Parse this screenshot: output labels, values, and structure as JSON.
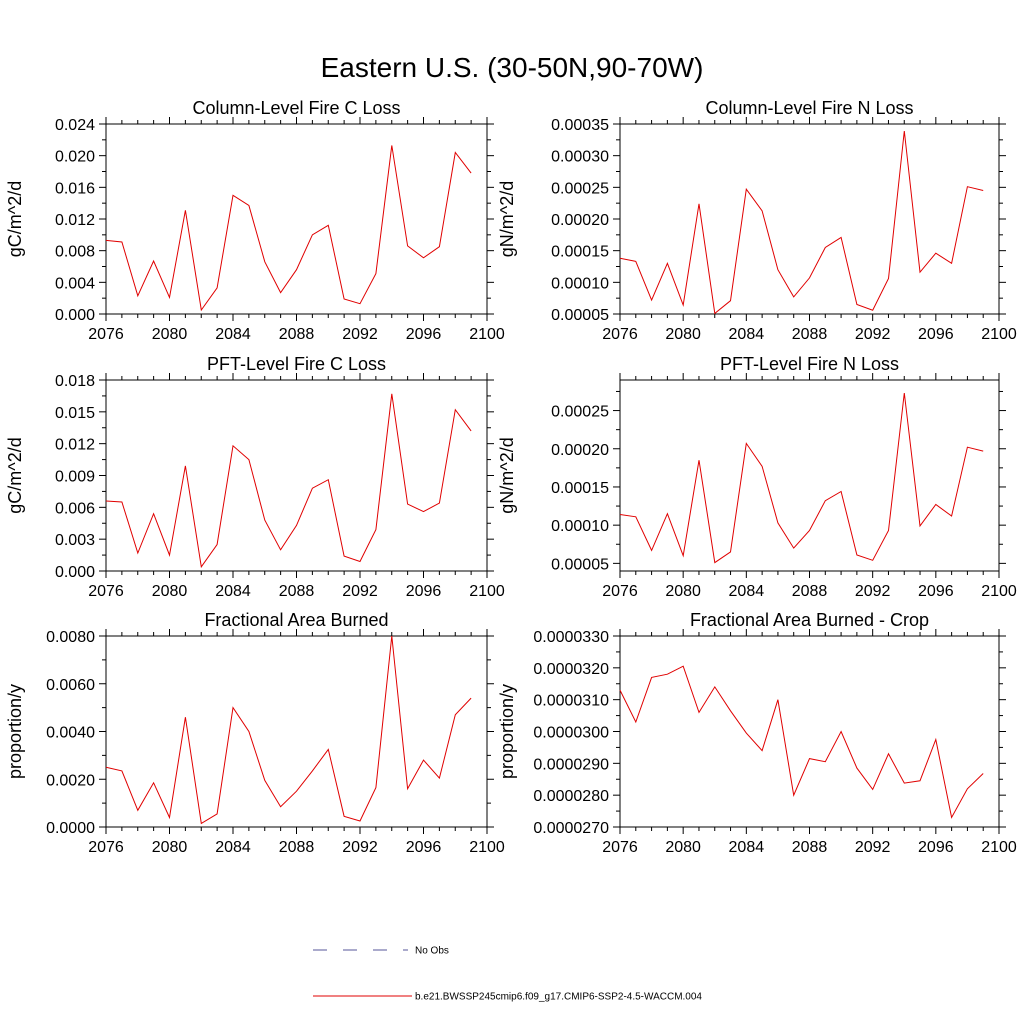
{
  "figure": {
    "title": "Eastern U.S. (30-50N,90-70W)"
  },
  "legend": {
    "items": [
      {
        "label": "No Obs",
        "color": "#555599",
        "style": "dashed"
      },
      {
        "label": "b.e21.BWSSP245cmip6.f09_g17.CMIP6-SSP2-4.5-WACCM.004",
        "color": "#e00000",
        "style": "solid"
      }
    ]
  },
  "chart_data": [
    {
      "type": "line",
      "title": "Column-Level Fire C Loss",
      "ylabel": "gC/m^2/d",
      "xlabel": "",
      "xlim": [
        2076,
        2100
      ],
      "ylim": [
        0.0,
        0.024
      ],
      "xticks": [
        "2076",
        "2080",
        "2084",
        "2088",
        "2092",
        "2096",
        "2100"
      ],
      "yticks": [
        "0.000",
        "0.004",
        "0.008",
        "0.012",
        "0.016",
        "0.020",
        "0.024"
      ],
      "series_color": "#e00000",
      "x": [
        2076,
        2077,
        2078,
        2079,
        2080,
        2081,
        2082,
        2083,
        2084,
        2085,
        2086,
        2087,
        2088,
        2089,
        2090,
        2091,
        2092,
        2093,
        2094,
        2095,
        2096,
        2097,
        2098,
        2099
      ],
      "y": [
        0.0093,
        0.0091,
        0.0023,
        0.0067,
        0.0021,
        0.0131,
        0.0005,
        0.0033,
        0.015,
        0.0137,
        0.0066,
        0.0027,
        0.0056,
        0.01,
        0.0112,
        0.0019,
        0.0013,
        0.0051,
        0.0213,
        0.0086,
        0.0071,
        0.0085,
        0.0204,
        0.0178
      ]
    },
    {
      "type": "line",
      "title": "Column-Level Fire N Loss",
      "ylabel": "gN/m^2/d",
      "xlabel": "",
      "xlim": [
        2076,
        2100
      ],
      "ylim": [
        5e-05,
        0.00035
      ],
      "xticks": [
        "2076",
        "2080",
        "2084",
        "2088",
        "2092",
        "2096",
        "2100"
      ],
      "yticks": [
        "0.00005",
        "0.00010",
        "0.00015",
        "0.00020",
        "0.00025",
        "0.00030",
        "0.00035"
      ],
      "series_color": "#e00000",
      "x": [
        2076,
        2077,
        2078,
        2079,
        2080,
        2081,
        2082,
        2083,
        2084,
        2085,
        2086,
        2087,
        2088,
        2089,
        2090,
        2091,
        2092,
        2093,
        2094,
        2095,
        2096,
        2097,
        2098,
        2099
      ],
      "y": [
        0.000138,
        0.000133,
        7.2e-05,
        0.00013,
        6.4e-05,
        0.000224,
        5.1e-05,
        7.1e-05,
        0.000247,
        0.000213,
        0.00012,
        7.7e-05,
        0.000107,
        0.000155,
        0.000171,
        6.5e-05,
        5.6e-05,
        0.000106,
        0.000339,
        0.000116,
        0.000146,
        0.00013,
        0.000251,
        0.000245
      ]
    },
    {
      "type": "line",
      "title": "PFT-Level Fire C Loss",
      "ylabel": "gC/m^2/d",
      "xlabel": "",
      "xlim": [
        2076,
        2100
      ],
      "ylim": [
        0.0,
        0.018
      ],
      "xticks": [
        "2076",
        "2080",
        "2084",
        "2088",
        "2092",
        "2096",
        "2100"
      ],
      "yticks": [
        "0.000",
        "0.003",
        "0.006",
        "0.009",
        "0.012",
        "0.015",
        "0.018"
      ],
      "series_color": "#e00000",
      "x": [
        2076,
        2077,
        2078,
        2079,
        2080,
        2081,
        2082,
        2083,
        2084,
        2085,
        2086,
        2087,
        2088,
        2089,
        2090,
        2091,
        2092,
        2093,
        2094,
        2095,
        2096,
        2097,
        2098,
        2099
      ],
      "y": [
        0.0066,
        0.0065,
        0.0017,
        0.0054,
        0.0015,
        0.0099,
        0.0004,
        0.0025,
        0.0118,
        0.0105,
        0.0048,
        0.002,
        0.0043,
        0.0078,
        0.0086,
        0.0014,
        0.0009,
        0.0039,
        0.0167,
        0.0063,
        0.0056,
        0.0064,
        0.0152,
        0.0132
      ]
    },
    {
      "type": "line",
      "title": "PFT-Level Fire N Loss",
      "ylabel": "gN/m^2/d",
      "xlabel": "",
      "xlim": [
        2076,
        2100
      ],
      "ylim": [
        4e-05,
        0.00029
      ],
      "xticks": [
        "2076",
        "2080",
        "2084",
        "2088",
        "2092",
        "2096",
        "2100"
      ],
      "yticks": [
        "0.00005",
        "0.00010",
        "0.00015",
        "0.00020",
        "0.00025"
      ],
      "ytick_values": [
        5e-05,
        0.0001,
        0.00015,
        0.0002,
        0.00025
      ],
      "series_color": "#e00000",
      "x": [
        2076,
        2077,
        2078,
        2079,
        2080,
        2081,
        2082,
        2083,
        2084,
        2085,
        2086,
        2087,
        2088,
        2089,
        2090,
        2091,
        2092,
        2093,
        2094,
        2095,
        2096,
        2097,
        2098,
        2099
      ],
      "y": [
        0.000114,
        0.000111,
        6.7e-05,
        0.000115,
        6e-05,
        0.000185,
        5.1e-05,
        6.5e-05,
        0.000207,
        0.000177,
        0.000103,
        7e-05,
        9.3e-05,
        0.000132,
        0.000144,
        6.1e-05,
        5.4e-05,
        9.3e-05,
        0.000273,
        9.9e-05,
        0.000127,
        0.000112,
        0.000202,
        0.000197
      ]
    },
    {
      "type": "line",
      "title": "Fractional Area Burned",
      "ylabel": "proportion/y",
      "xlabel": "",
      "xlim": [
        2076,
        2100
      ],
      "ylim": [
        0.0,
        0.008
      ],
      "xticks": [
        "2076",
        "2080",
        "2084",
        "2088",
        "2092",
        "2096",
        "2100"
      ],
      "yticks": [
        "0.0000",
        "0.0020",
        "0.0040",
        "0.0060",
        "0.0080"
      ],
      "series_color": "#e00000",
      "x": [
        2076,
        2077,
        2078,
        2079,
        2080,
        2081,
        2082,
        2083,
        2084,
        2085,
        2086,
        2087,
        2088,
        2089,
        2090,
        2091,
        2092,
        2093,
        2094,
        2095,
        2096,
        2097,
        2098,
        2099
      ],
      "y": [
        0.0025,
        0.00235,
        0.0007,
        0.00185,
        0.0004,
        0.0046,
        0.00015,
        0.00055,
        0.005,
        0.004,
        0.00195,
        0.00085,
        0.0015,
        0.00235,
        0.00325,
        0.00045,
        0.00025,
        0.00165,
        0.008,
        0.0016,
        0.0028,
        0.00205,
        0.0047,
        0.0054
      ]
    },
    {
      "type": "line",
      "title": "Fractional Area Burned - Crop",
      "ylabel": "proportion/y",
      "xlabel": "",
      "xlim": [
        2076,
        2100
      ],
      "ylim": [
        2.7e-05,
        3.3e-05
      ],
      "xticks": [
        "2076",
        "2080",
        "2084",
        "2088",
        "2092",
        "2096",
        "2100"
      ],
      "yticks": [
        "0.0000270",
        "0.0000280",
        "0.0000290",
        "0.0000300",
        "0.0000310",
        "0.0000320",
        "0.0000330"
      ],
      "series_color": "#e00000",
      "x": [
        2076,
        2077,
        2078,
        2079,
        2080,
        2081,
        2082,
        2083,
        2084,
        2085,
        2086,
        2087,
        2088,
        2089,
        2090,
        2091,
        2092,
        2093,
        2094,
        2095,
        2096,
        2097,
        2098,
        2099
      ],
      "y": [
        3.13e-05,
        3.03e-05,
        3.17e-05,
        3.18e-05,
        3.205e-05,
        3.06e-05,
        3.14e-05,
        3.065e-05,
        2.995e-05,
        2.94e-05,
        3.1e-05,
        2.8e-05,
        2.915e-05,
        2.905e-05,
        3e-05,
        2.885e-05,
        2.818e-05,
        2.93e-05,
        2.838e-05,
        2.845e-05,
        2.975e-05,
        2.73e-05,
        2.82e-05,
        2.868e-05
      ]
    }
  ]
}
